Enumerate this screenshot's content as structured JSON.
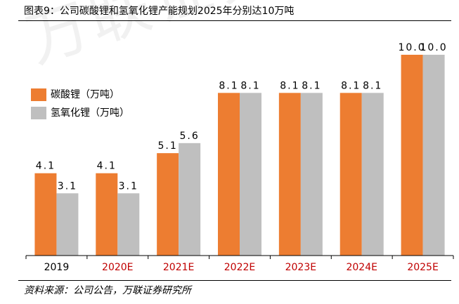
{
  "header": {
    "title": "图表9：公司碳酸锂和氢氧化锂产能规划2025年分别达10万吨"
  },
  "footer": {
    "source": "资料来源：公司公告，万联证券研究所"
  },
  "watermark": "万联证券",
  "colors": {
    "series1": "#ED7D31",
    "series2": "#BFBFBF",
    "highlight_label": "#C00000",
    "normal_label": "#000000"
  },
  "chart_data": {
    "type": "bar",
    "title": "图表9：公司碳酸锂和氢氧化锂产能规划2025年分别达10万吨",
    "xlabel": "",
    "ylabel": "",
    "ylim": [
      0,
      10.5
    ],
    "grid": false,
    "legend_position": "left",
    "categories": [
      "2019",
      "2020E",
      "2021E",
      "2022E",
      "2023E",
      "2024E",
      "2025E"
    ],
    "category_label_colors": [
      "#000000",
      "#C00000",
      "#C00000",
      "#C00000",
      "#C00000",
      "#C00000",
      "#C00000"
    ],
    "series": [
      {
        "name": "碳酸锂（万吨）",
        "color": "#ED7D31",
        "values": [
          4.1,
          4.1,
          5.1,
          8.1,
          8.1,
          8.1,
          10.0
        ],
        "labels": [
          "4.1",
          "4.1",
          "5.1",
          "8.1",
          "8.1",
          "8.1",
          "10.0"
        ]
      },
      {
        "name": "氢氧化锂（万吨）",
        "color": "#BFBFBF",
        "values": [
          3.1,
          3.1,
          5.6,
          8.1,
          8.1,
          8.1,
          10.0
        ],
        "labels": [
          "3.1",
          "3.1",
          "5.6",
          "8.1",
          "8.1",
          "8.1",
          "10.0"
        ]
      }
    ]
  }
}
